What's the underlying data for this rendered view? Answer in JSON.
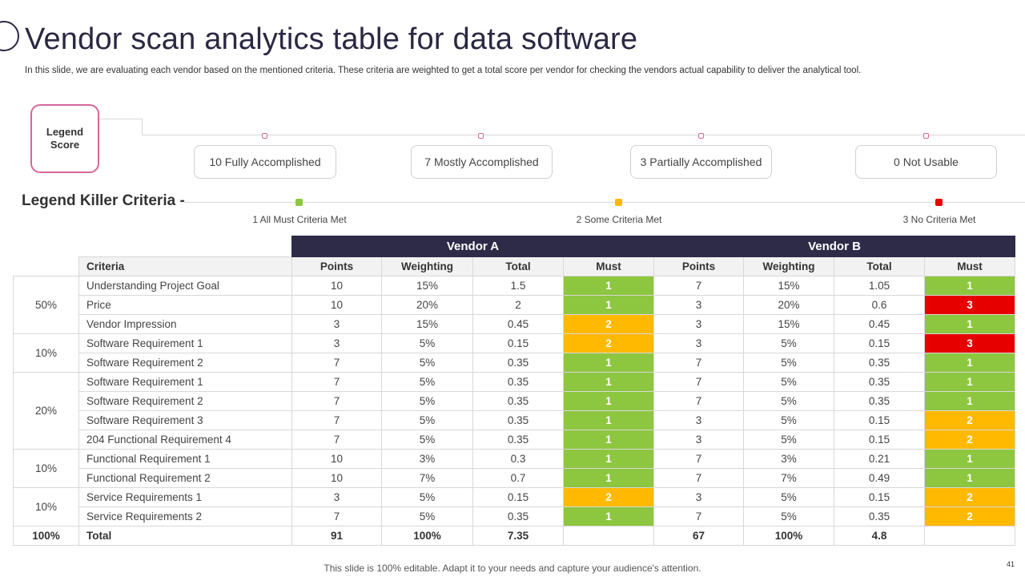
{
  "title": "Vendor scan analytics table for data software",
  "subtitle": "In this slide, we are evaluating each vendor based on the mentioned criteria. These criteria are weighted to get a total score per vendor for checking the vendors actual capability to deliver the analytical tool.",
  "legend_score": {
    "line1": "Legend",
    "line2": "Score"
  },
  "score_levels": [
    "10 Fully Accomplished",
    "7 Mostly Accomplished",
    "3 Partially Accomplished",
    "0 Not Usable"
  ],
  "killer": {
    "title": "Legend Killer Criteria -",
    "items": [
      {
        "label": "1 All Must Criteria Met",
        "color": "#8dc63f"
      },
      {
        "label": "2 Some Criteria Met",
        "color": "#ffb900"
      },
      {
        "label": "3 No Criteria Met",
        "color": "#e60000"
      }
    ]
  },
  "colors": {
    "header": "#2e2b48",
    "green": "#8dc63f",
    "amber": "#ffb900",
    "red": "#e60000",
    "accent": "#d6679a"
  },
  "table": {
    "vendors": [
      "Vendor A",
      "Vendor B"
    ],
    "criteria_header": "Criteria",
    "sub_headers": [
      "Points",
      "Weighting",
      "Total",
      "Must"
    ],
    "groups": [
      "50%",
      "10%",
      "20%",
      "10%",
      "10%"
    ],
    "rows": [
      {
        "criteria": "Understanding  Project Goal",
        "a": [
          "10",
          "15%",
          "1.5",
          "1"
        ],
        "b": [
          "7",
          "15%",
          "1.05",
          "1"
        ]
      },
      {
        "criteria": "Price",
        "a": [
          "10",
          "20%",
          "2",
          "1"
        ],
        "b": [
          "3",
          "20%",
          "0.6",
          "3"
        ]
      },
      {
        "criteria": "Vendor Impression",
        "a": [
          "3",
          "15%",
          "0.45",
          "2"
        ],
        "b": [
          "3",
          "15%",
          "0.45",
          "1"
        ]
      },
      {
        "criteria": "Software Requirement  1",
        "a": [
          "3",
          "5%",
          "0.15",
          "2"
        ],
        "b": [
          "3",
          "5%",
          "0.15",
          "3"
        ]
      },
      {
        "criteria": "Software Requirement  2",
        "a": [
          "7",
          "5%",
          "0.35",
          "1"
        ],
        "b": [
          "7",
          "5%",
          "0.35",
          "1"
        ]
      },
      {
        "criteria": "Software Requirement  1",
        "a": [
          "7",
          "5%",
          "0.35",
          "1"
        ],
        "b": [
          "7",
          "5%",
          "0.35",
          "1"
        ]
      },
      {
        "criteria": "Software Requirement  2",
        "a": [
          "7",
          "5%",
          "0.35",
          "1"
        ],
        "b": [
          "7",
          "5%",
          "0.35",
          "1"
        ]
      },
      {
        "criteria": "Software Requirement  3",
        "a": [
          "7",
          "5%",
          "0.35",
          "1"
        ],
        "b": [
          "3",
          "5%",
          "0.15",
          "2"
        ]
      },
      {
        "criteria": "204 Functional Requirement  4",
        "a": [
          "7",
          "5%",
          "0.35",
          "1"
        ],
        "b": [
          "3",
          "5%",
          "0.15",
          "2"
        ]
      },
      {
        "criteria": "Functional Requirement  1",
        "a": [
          "10",
          "3%",
          "0.3",
          "1"
        ],
        "b": [
          "7",
          "3%",
          "0.21",
          "1"
        ]
      },
      {
        "criteria": "Functional Requirement  2",
        "a": [
          "10",
          "7%",
          "0.7",
          "1"
        ],
        "b": [
          "7",
          "7%",
          "0.49",
          "1"
        ]
      },
      {
        "criteria": "Service Requirements  1",
        "a": [
          "3",
          "5%",
          "0.15",
          "2"
        ],
        "b": [
          "3",
          "5%",
          "0.15",
          "2"
        ]
      },
      {
        "criteria": "Service Requirements  2",
        "a": [
          "7",
          "5%",
          "0.35",
          "1"
        ],
        "b": [
          "7",
          "5%",
          "0.35",
          "2"
        ]
      }
    ],
    "total": {
      "weight": "100%",
      "label": "Total",
      "a": [
        "91",
        "100%",
        "7.35",
        ""
      ],
      "b": [
        "67",
        "100%",
        "4.8",
        ""
      ]
    }
  },
  "footer": "This slide is 100% editable. Adapt it to your needs and capture your audience's attention.",
  "page_number": "41"
}
